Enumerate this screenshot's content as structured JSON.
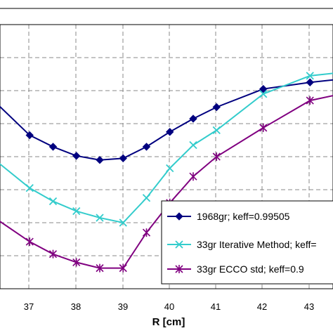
{
  "chart_data": {
    "type": "line",
    "xlabel": "R [cm]",
    "xlim": [
      36.5,
      44
    ],
    "x_ticks": [
      "37",
      "38",
      "39",
      "40",
      "41",
      "42",
      "43"
    ],
    "ylim": [
      0,
      16
    ],
    "grid": true,
    "grid_style": "dashed",
    "legend_position": "lower-right",
    "series": [
      {
        "name": "1968gr; keff=0.99505",
        "color": "#00007f",
        "marker": "diamond",
        "x": [
          36.3,
          37,
          37.5,
          38,
          38.5,
          39,
          39.5,
          40,
          40.5,
          41,
          42,
          43,
          44
        ],
        "y": [
          11.2,
          9.3,
          8.6,
          8.05,
          7.8,
          7.9,
          8.6,
          9.5,
          10.3,
          11.0,
          12.1,
          12.5,
          12.8
        ]
      },
      {
        "name": "33gr Iterative Method; keff=",
        "color": "#33cccc",
        "marker": "x",
        "x": [
          36.3,
          37,
          37.5,
          38,
          38.5,
          39,
          39.5,
          40,
          40.5,
          41,
          42,
          43,
          44
        ],
        "y": [
          7.7,
          6.1,
          5.3,
          4.7,
          4.3,
          4.0,
          5.5,
          7.3,
          8.7,
          9.6,
          11.8,
          12.9,
          13.2
        ]
      },
      {
        "name": "33gr ECCO std; keff=0.9",
        "color": "#800080",
        "marker": "star",
        "x": [
          36.3,
          37,
          37.5,
          38,
          38.5,
          39,
          39.5,
          40,
          40.5,
          41,
          42,
          43,
          44
        ],
        "y": [
          4.2,
          2.85,
          2.1,
          1.6,
          1.25,
          1.25,
          3.4,
          5.2,
          6.8,
          8.0,
          9.75,
          11.4,
          12.0
        ]
      }
    ]
  }
}
